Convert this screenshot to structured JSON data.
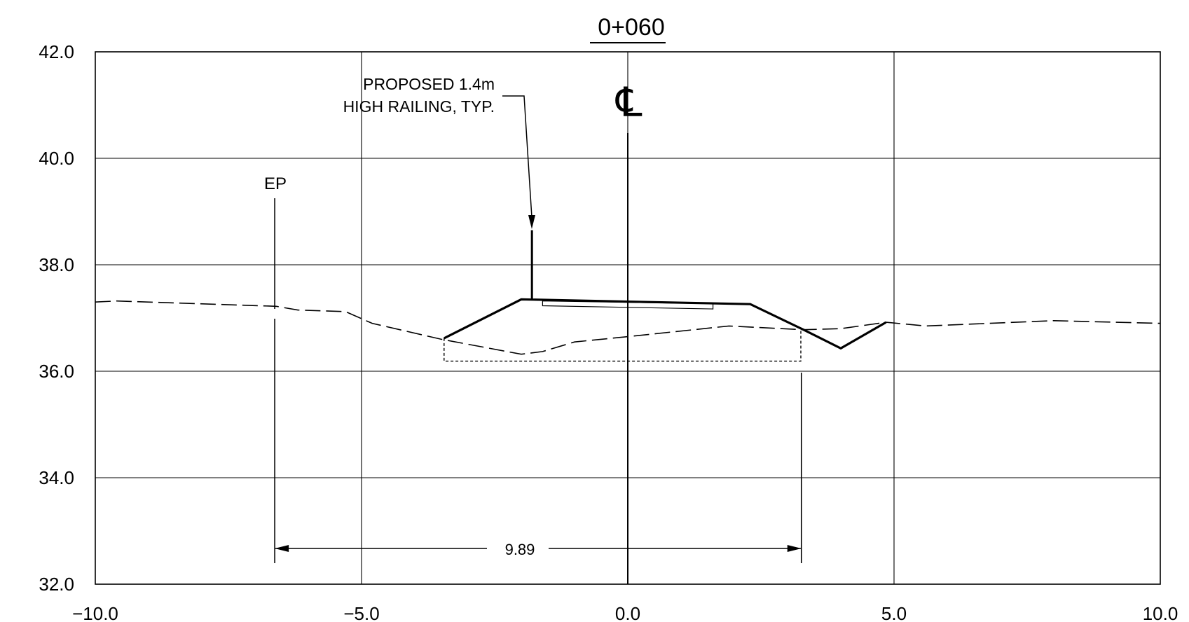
{
  "chart_data": {
    "type": "line",
    "title": "0+060",
    "xlim": [
      -10.0,
      10.0
    ],
    "ylim": [
      32.0,
      42.0
    ],
    "x_ticks": [
      "−10.0",
      "−5.0",
      "0.0",
      "5.0",
      "10.0"
    ],
    "x_tick_values": [
      -10,
      -5,
      0,
      5,
      10
    ],
    "y_ticks": [
      "42.0",
      "40.0",
      "38.0",
      "36.0",
      "34.0",
      "32.0"
    ],
    "y_tick_values": [
      42,
      40,
      38,
      36,
      34,
      32
    ],
    "grid": true,
    "series": [
      {
        "style": "dashed",
        "x": [
          -10.0,
          -9.6,
          -6.6,
          -6.2,
          -5.3,
          -4.8,
          -3.5,
          -2.0,
          -1.6,
          -1.0,
          0.0,
          1.9,
          2.9,
          3.3,
          4.0,
          4.85,
          5.6,
          8.0,
          10.0
        ],
        "y": [
          37.3,
          37.32,
          37.22,
          37.15,
          37.12,
          36.9,
          36.6,
          36.32,
          36.37,
          36.55,
          36.65,
          36.85,
          36.8,
          36.78,
          36.8,
          36.92,
          36.85,
          36.95,
          36.9
        ]
      },
      {
        "style": "solid",
        "x": [
          -3.45,
          -2.0,
          2.3,
          3.3,
          4.0,
          4.85
        ],
        "y": [
          36.62,
          37.35,
          37.26,
          36.78,
          36.43,
          36.92
        ]
      }
    ],
    "annotations": {
      "railing_note": [
        "PROPOSED 1.4m",
        "HIGH RAILING, TYP."
      ],
      "centerline": "℄",
      "edge_of_pavement": "EP",
      "dimension": "9.89"
    }
  }
}
